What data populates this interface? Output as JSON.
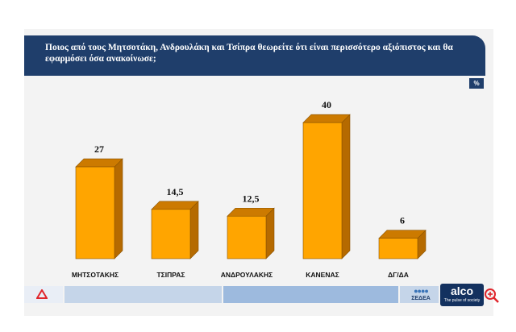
{
  "title": "Ποιος από τους Μητσοτάκη, Ανδρουλάκη και Τσίπρα θεωρείτε ότι είναι περισσότερο αξιόπιστος και θα εφαρμόσει όσα ανακοίνωσε;",
  "unit_badge": "%",
  "colors": {
    "bar_front": "#ffa500",
    "bar_top": "#cc7a00",
    "bar_side": "#b56a00",
    "title_bg": "#1f3e6b"
  },
  "footer": {
    "sedea_label": "ΣΕΔΕΑ",
    "alco_label": "alco",
    "alco_tagline": "The pulse of society",
    "left_logo_icon": "red-triangle-logo-icon",
    "zoom_icon": "magnifier-plus-icon"
  },
  "chart_data": {
    "type": "bar",
    "categories": [
      "ΜΗΤΣΟΤΑΚΗΣ",
      "ΤΣΙΠΡΑΣ",
      "ΑΝΔΡΟΥΛΑΚΗΣ",
      "ΚΑΝΕΝΑΣ",
      "ΔΓ/ΔΑ"
    ],
    "values": [
      27,
      14.5,
      12.5,
      40,
      6
    ],
    "value_labels": [
      "27",
      "14,5",
      "12,5",
      "40",
      "6"
    ],
    "title": "",
    "xlabel": "",
    "ylabel": "",
    "ylim": [
      0,
      40
    ],
    "grid": false,
    "legend": "none"
  }
}
